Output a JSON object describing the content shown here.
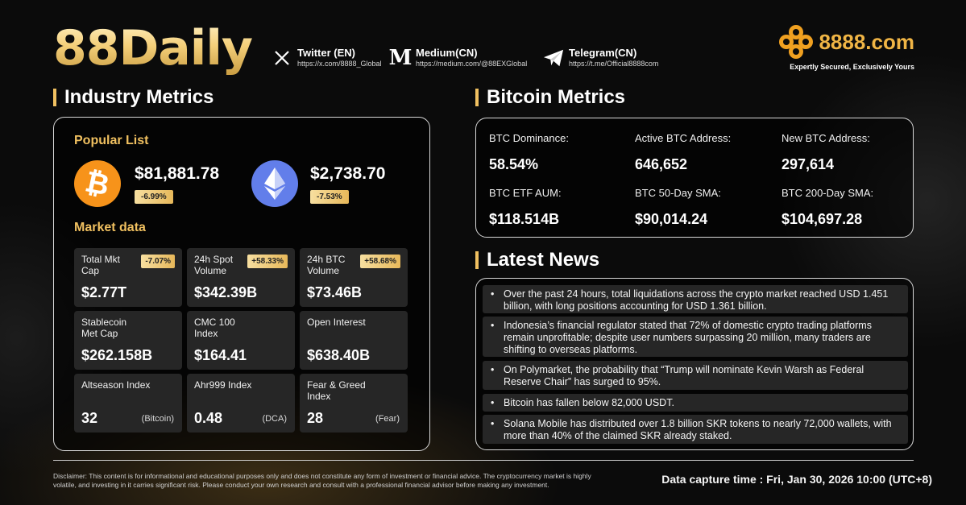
{
  "header": {
    "brand": "88Daily",
    "socials": [
      {
        "icon": "x-logo-icon",
        "name": "Twitter (EN)",
        "url": "https://x.com/8888_Global"
      },
      {
        "icon": "medium-logo-icon",
        "name": "Medium(CN)",
        "url": "https://medium.com/@88EXGlobal"
      },
      {
        "icon": "telegram-logo-icon",
        "name": "Telegram(CN)",
        "url": "https://t.me/Official8888com"
      }
    ],
    "logo": {
      "name": "8888.com",
      "tagline": "Expertly Secured, Exclusively Yours",
      "color": "#f0b545"
    }
  },
  "industry": {
    "title": "Industry Metrics",
    "popular_title": "Popular List",
    "coins": [
      {
        "icon": "bitcoin-icon",
        "price": "$81,881.78",
        "change": "-6.99%",
        "color": "#f7931a"
      },
      {
        "icon": "ethereum-icon",
        "price": "$2,738.70",
        "change": "-7.53%",
        "color": "#627eea"
      }
    ],
    "market_title": "Market data",
    "market": [
      {
        "label": "Total Mkt Cap",
        "badge": "-7.07%",
        "value": "$2.77T",
        "note": ""
      },
      {
        "label": "24h Spot Volume",
        "badge": "+58.33%",
        "value": "$342.39B",
        "note": ""
      },
      {
        "label": "24h BTC Volume",
        "badge": "+58.68%",
        "value": "$73.46B",
        "note": ""
      },
      {
        "label": "Stablecoin Met Cap",
        "badge": "",
        "value": "$262.158B",
        "note": ""
      },
      {
        "label": "CMC 100 Index",
        "badge": "",
        "value": "$164.41",
        "note": ""
      },
      {
        "label": "Open Interest",
        "badge": "",
        "value": "$638.40B",
        "note": ""
      },
      {
        "label": "Altseason Index",
        "badge": "",
        "value": "32",
        "note": "(Bitcoin)"
      },
      {
        "label": "Ahr999 Index",
        "badge": "",
        "value": "0.48",
        "note": "(DCA)"
      },
      {
        "label": "Fear & Greed Index",
        "badge": "",
        "value": "28",
        "note": "(Fear)"
      }
    ]
  },
  "bitcoin": {
    "title": "Bitcoin Metrics",
    "metrics": [
      {
        "label": "BTC Dominance:",
        "value": "58.54%"
      },
      {
        "label": "Active BTC Address:",
        "value": "646,652"
      },
      {
        "label": "New BTC Address:",
        "value": "297,614"
      },
      {
        "label": "BTC ETF AUM:",
        "value": "$118.514B"
      },
      {
        "label": "BTC 50-Day SMA:",
        "value": "$90,014.24"
      },
      {
        "label": "BTC 200-Day SMA:",
        "value": "$104,697.28"
      }
    ]
  },
  "news": {
    "title": "Latest News",
    "items": [
      "Over the past 24 hours, total liquidations across the crypto market reached USD 1.451 billion, with long positions accounting for USD 1.361 billion.",
      "Indonesia’s financial regulator stated that 72% of domestic crypto trading platforms remain unprofitable; despite user numbers surpassing 20 million, many traders are shifting to overseas platforms.",
      "On Polymarket, the probability that “Trump will nominate Kevin Warsh as Federal Reserve Chair” has surged to 95%.",
      "Bitcoin has fallen below 82,000 USDT.",
      "Solana Mobile has distributed over 1.8 billion SKR tokens to nearly 72,000 wallets, with more than 40% of the claimed SKR already staked."
    ]
  },
  "footer": {
    "disclaimer": "Disclaimer: This content is for informational and educational purposes only and does not constitute any form of investment or financial advice. The cryptocurrency market is highly volatile, and investing in it carries significant risk. Please conduct your own research and consult with a professional financial advisor before making any investment.",
    "capture": "Data capture time : Fri, Jan 30, 2026 10:00 (UTC+8)"
  }
}
